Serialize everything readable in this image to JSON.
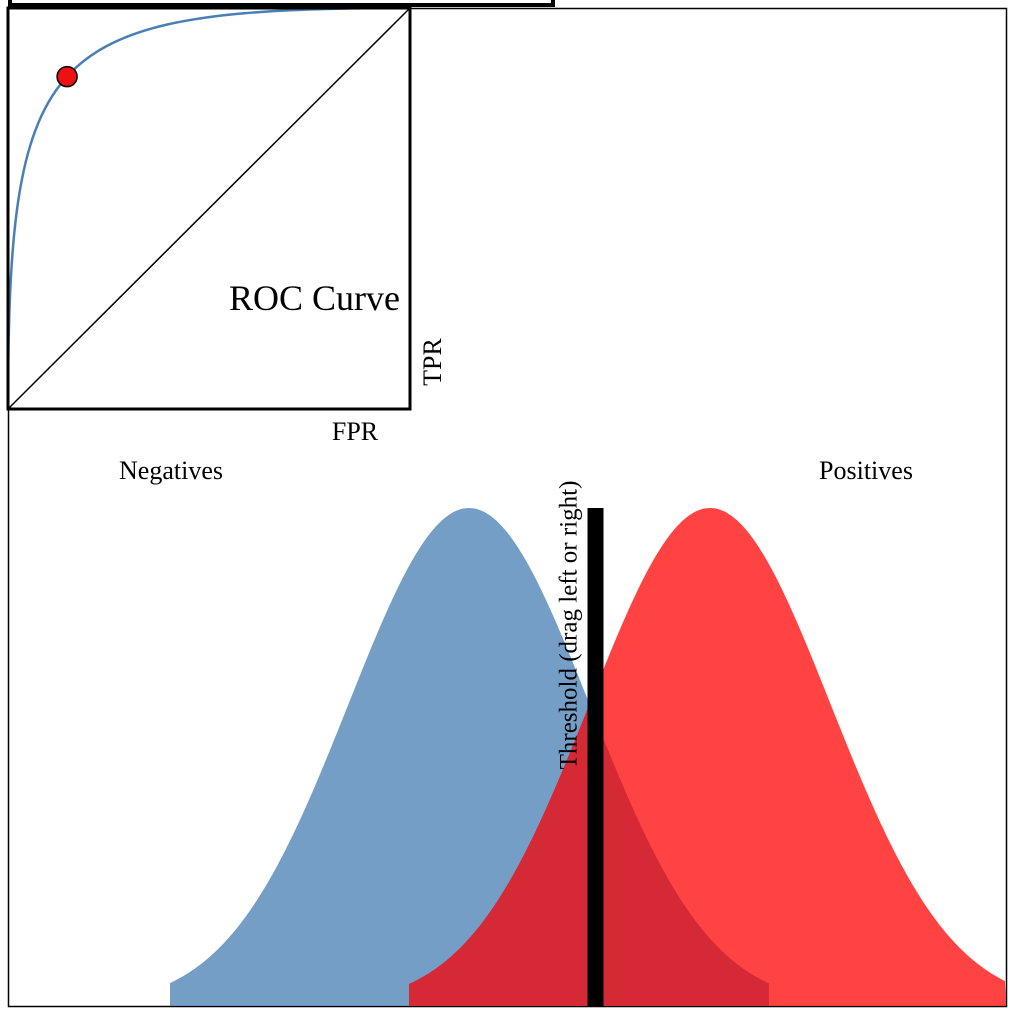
{
  "roc_panel": {
    "title": "ROC Curve",
    "xlabel": "FPR",
    "ylabel": "TPR"
  },
  "distributions": {
    "negatives_label": "Negatives",
    "positives_label": "Positives"
  },
  "threshold": {
    "label": "Threshold (drag left or right)"
  },
  "colors": {
    "negatives": "#4a7fb5",
    "positives": "#ff1f1f",
    "overlap": "#d42a35",
    "roc_curve": "#4a7fb5",
    "operating_point": "#ee1111",
    "threshold_line": "#000000",
    "frame": "#000000"
  },
  "chart_data": [
    {
      "type": "area",
      "title": "",
      "xlabel": "",
      "ylabel": "",
      "grid": false,
      "x_range": [
        -3.6,
        5.6
      ],
      "series": [
        {
          "name": "Negatives",
          "distribution": "normal",
          "mean": 0,
          "sd": 1
        },
        {
          "name": "Positives",
          "distribution": "normal",
          "mean": 2,
          "sd": 1
        }
      ],
      "threshold": 1.05
    },
    {
      "type": "line",
      "title": "ROC Curve",
      "xlabel": "FPR",
      "ylabel": "TPR",
      "xlim": [
        0,
        1
      ],
      "ylim": [
        0,
        1
      ],
      "grid": false,
      "diagonal": true,
      "operating_point": {
        "fpr": 0.147,
        "tpr": 0.829
      }
    }
  ]
}
